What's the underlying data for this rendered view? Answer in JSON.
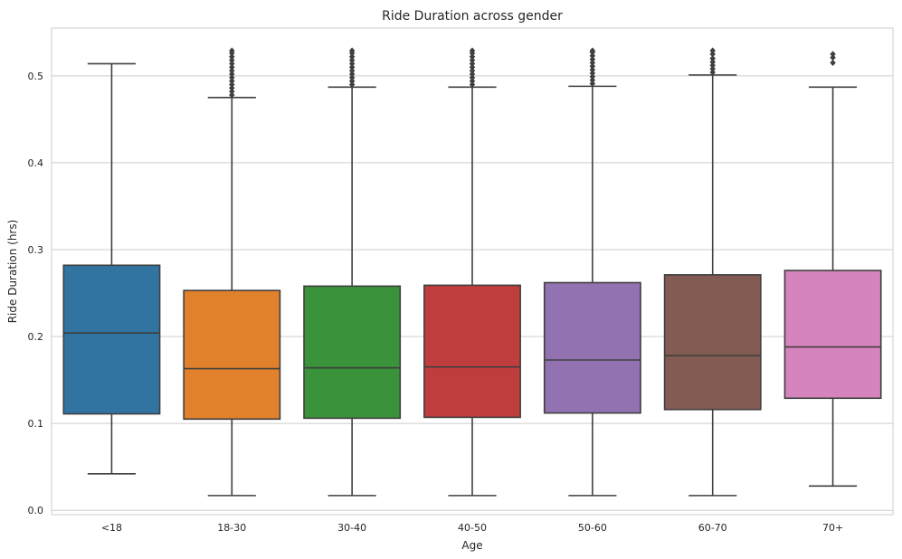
{
  "chart_data": {
    "type": "box",
    "title": "Ride Duration across gender",
    "xlabel": "Age",
    "ylabel": "Ride Duration (hrs)",
    "ylim": [
      -0.005,
      0.555
    ],
    "yticks": [
      0.0,
      0.1,
      0.2,
      0.3,
      0.4,
      0.5
    ],
    "ytick_labels": [
      "0.0",
      "0.1",
      "0.2",
      "0.3",
      "0.4",
      "0.5"
    ],
    "grid": "horizontal",
    "categories": [
      "<18",
      "18-30",
      "30-40",
      "40-50",
      "50-60",
      "60-70",
      "70+"
    ],
    "colors": [
      "#3274a1",
      "#e1812c",
      "#3a923a",
      "#c03d3e",
      "#9372b2",
      "#845b53",
      "#d684bd"
    ],
    "boxes": [
      {
        "whisker_low": 0.042,
        "q1": 0.111,
        "median": 0.204,
        "q3": 0.282,
        "whisker_high": 0.514,
        "outliers": []
      },
      {
        "whisker_low": 0.017,
        "q1": 0.105,
        "median": 0.163,
        "q3": 0.253,
        "whisker_high": 0.475,
        "outliers": [
          0.478,
          0.482,
          0.486,
          0.49,
          0.494,
          0.498,
          0.502,
          0.506,
          0.51,
          0.514,
          0.518,
          0.522,
          0.526,
          0.529
        ]
      },
      {
        "whisker_low": 0.017,
        "q1": 0.106,
        "median": 0.164,
        "q3": 0.258,
        "whisker_high": 0.487,
        "outliers": [
          0.49,
          0.494,
          0.498,
          0.502,
          0.506,
          0.51,
          0.514,
          0.518,
          0.522,
          0.526,
          0.529
        ]
      },
      {
        "whisker_low": 0.017,
        "q1": 0.107,
        "median": 0.165,
        "q3": 0.259,
        "whisker_high": 0.487,
        "outliers": [
          0.49,
          0.494,
          0.498,
          0.502,
          0.506,
          0.51,
          0.514,
          0.518,
          0.522,
          0.526,
          0.529
        ]
      },
      {
        "whisker_low": 0.017,
        "q1": 0.112,
        "median": 0.173,
        "q3": 0.262,
        "whisker_high": 0.488,
        "outliers": [
          0.491,
          0.495,
          0.499,
          0.503,
          0.507,
          0.511,
          0.515,
          0.519,
          0.523,
          0.527,
          0.529
        ]
      },
      {
        "whisker_low": 0.017,
        "q1": 0.116,
        "median": 0.178,
        "q3": 0.271,
        "whisker_high": 0.501,
        "outliers": [
          0.504,
          0.508,
          0.512,
          0.516,
          0.52,
          0.525,
          0.529
        ]
      },
      {
        "whisker_low": 0.028,
        "q1": 0.129,
        "median": 0.188,
        "q3": 0.276,
        "whisker_high": 0.487,
        "outliers": [
          0.515,
          0.521,
          0.525
        ]
      }
    ]
  }
}
